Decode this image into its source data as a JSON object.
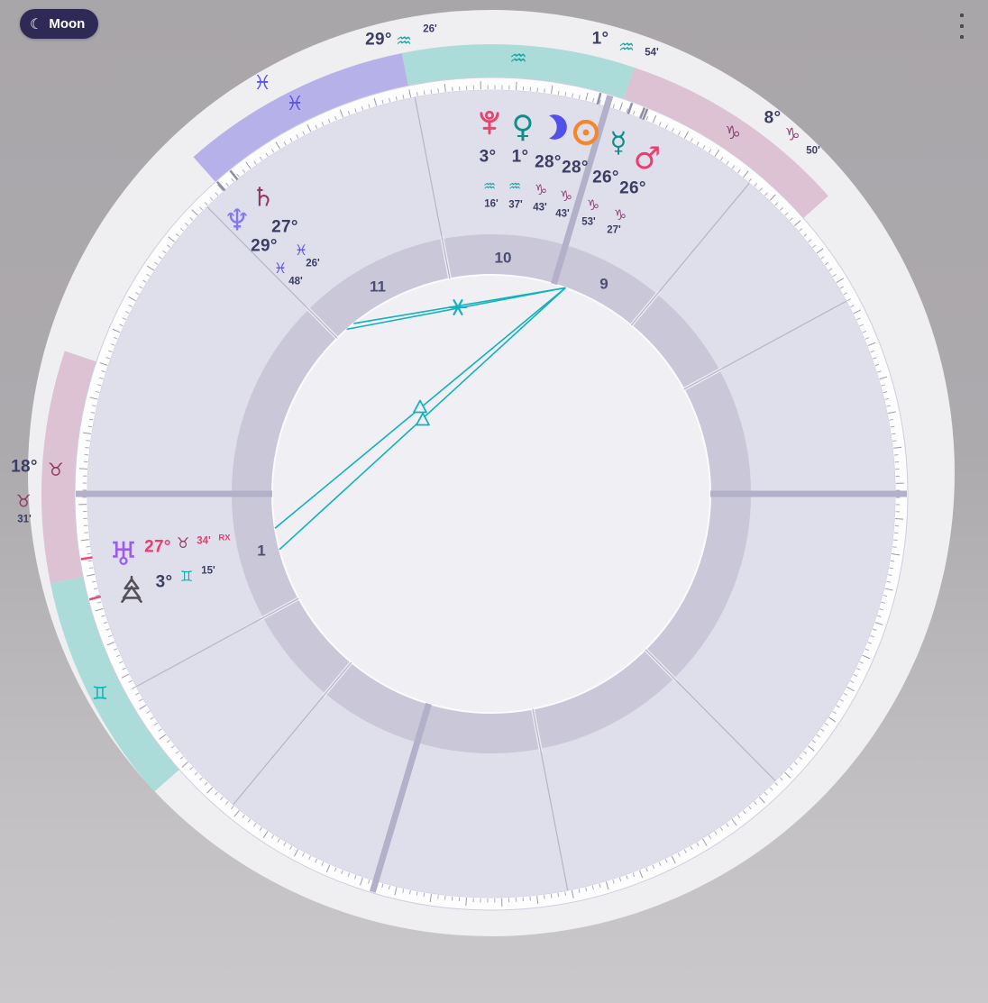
{
  "chip": {
    "label": "Moon",
    "icon": "crescent-moon-icon"
  },
  "menu": {
    "icon": "kebab-menu-icon"
  },
  "colors": {
    "chip_bg": "#2f2a55",
    "aspect_teal": "#12b2bc",
    "sign_band_pink": "#dcc2d3",
    "sign_band_teal": "#abdcda",
    "sign_band_lavender": "#b7b1ea",
    "wheel_zone_lavender": "#dfdeeb",
    "house_ring_gray": "#c9c7d8",
    "inner_circle": "#f0eff3",
    "retrograde_pink": "#ee3a6e",
    "degree_navy": "#3b3e63"
  },
  "wheel": {
    "cusps": {
      "h11": {
        "deg": "29°",
        "glyph": "♒",
        "min": "26'",
        "sign": "aquarius"
      },
      "h10_mc": {
        "deg": "1°",
        "glyph": "♒",
        "min": "54'",
        "sign": "aquarius"
      },
      "h9": {
        "deg": "8°",
        "glyph": "♑",
        "min": "50'",
        "sign": "capricorn"
      },
      "asc": {
        "deg": "18°",
        "glyph": "♉",
        "min": "31'",
        "sign": "taurus"
      }
    },
    "houses": {
      "h1": "1",
      "h9": "9",
      "h10": "10",
      "h11": "11"
    },
    "zodiac_band": [
      {
        "sign": "capricorn",
        "glyph": "♑",
        "color": "#dcc2d3",
        "glyph_color": "#8c4878"
      },
      {
        "sign": "aquarius",
        "glyph": "♒",
        "color": "#abdcda",
        "glyph_color": "#1ba3a3"
      },
      {
        "sign": "pisces",
        "glyph": "♓",
        "color": "#b7b1ea",
        "glyph_color": "#5a52ec"
      },
      {
        "sign": "taurus",
        "glyph": "♉",
        "color": "#dcc2d3",
        "glyph_color": "#8f3a64"
      },
      {
        "sign": "gemini",
        "glyph": "♊",
        "color": "#abdcda",
        "glyph_color": "#11b0b4"
      }
    ],
    "planets": [
      {
        "name": "Pluto",
        "glyph": "pluto-svg",
        "deg": "3°",
        "sign_glyph": "♒",
        "min": "16'",
        "rx": "",
        "color": "#e9446f"
      },
      {
        "name": "Venus",
        "glyph": "♀",
        "deg": "1°",
        "sign_glyph": "♒",
        "min": "37'",
        "rx": "",
        "color": "#0f8f88"
      },
      {
        "name": "Moon",
        "glyph": "moon-svg",
        "deg": "28°",
        "sign_glyph": "♑",
        "min": "43'",
        "rx": "",
        "color": "#5150e8"
      },
      {
        "name": "Sun",
        "glyph": "sun-svg",
        "deg": "28°",
        "sign_glyph": "♑",
        "min": "43'",
        "rx": "",
        "color": "#f5862c"
      },
      {
        "name": "Mercury",
        "glyph": "☿",
        "deg": "26°",
        "sign_glyph": "♑",
        "min": "53'",
        "rx": "",
        "color": "#0f8f88"
      },
      {
        "name": "Mars",
        "glyph": "♂",
        "deg": "26°",
        "sign_glyph": "♑",
        "min": "27'",
        "rx": "",
        "color": "#ee3a6e"
      },
      {
        "name": "Saturn",
        "glyph": "♄",
        "deg": "27°",
        "sign_glyph": "♓",
        "min": "26'",
        "rx": "",
        "color": "#8f3a64"
      },
      {
        "name": "Neptune",
        "glyph": "♆",
        "deg": "29°",
        "sign_glyph": "♓",
        "min": "48'",
        "rx": "",
        "color": "#8577f2"
      },
      {
        "name": "Uranus",
        "glyph": "♅",
        "deg": "27°",
        "sign_glyph": "♉",
        "min": "34'",
        "rx": "RX",
        "color": "#9c5bf0"
      },
      {
        "name": "Vesta",
        "glyph": "vesta-svg",
        "deg": "3°",
        "sign_glyph": "♊",
        "min": "15'",
        "rx": "",
        "color": "#55515a"
      }
    ],
    "aspects": [
      {
        "type": "sextile",
        "from": "Moon",
        "to": "Saturn"
      },
      {
        "type": "sextile",
        "from": "Moon",
        "to": "Neptune"
      },
      {
        "type": "trine",
        "from": "Moon",
        "to": "Uranus"
      },
      {
        "type": "trine",
        "from": "Moon",
        "to": "Vesta"
      }
    ]
  }
}
